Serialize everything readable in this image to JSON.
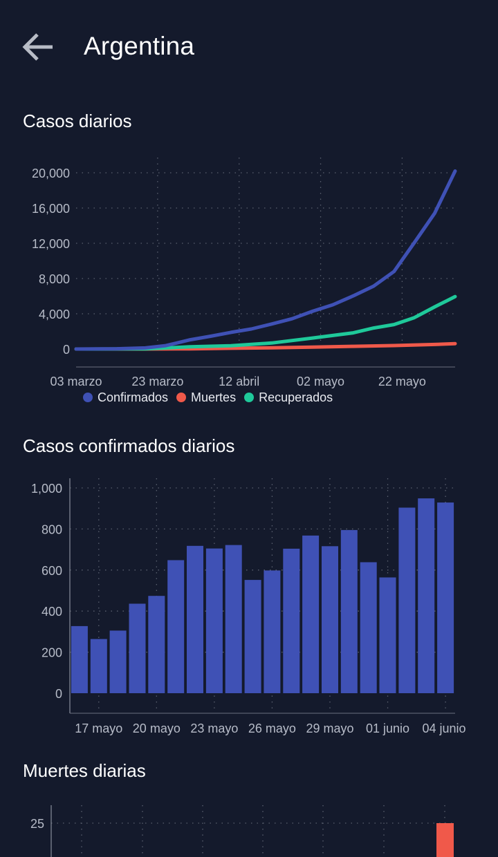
{
  "header": {
    "title": "Argentina"
  },
  "sections": {
    "cumulative": "Casos diarios",
    "confirmed": "Casos confirmados diarios",
    "deaths": "Muertes diarias"
  },
  "colors": {
    "background": "#141a2c",
    "confirmed": "#3f51b5",
    "deaths": "#f0594a",
    "recovered": "#1fc99a",
    "grid": "#5b6170",
    "tick": "#b7bcc8"
  },
  "chart_data": [
    {
      "type": "line",
      "title": "Casos diarios",
      "x_tick_labels": [
        "03 marzo",
        "23 marzo",
        "12 abril",
        "02 mayo",
        "22 mayo"
      ],
      "y_tick_labels": [
        "0",
        "4,000",
        "8,000",
        "12,000",
        "16,000",
        "20,000"
      ],
      "ylim": [
        0,
        20000
      ],
      "xlim": [
        "2020-03-03",
        "2020-06-04"
      ],
      "grid": true,
      "legend": "bottom",
      "series": [
        {
          "name": "Confirmados",
          "color": "#3f51b5",
          "points": [
            [
              "2020-03-03",
              1
            ],
            [
              "2020-03-13",
              31
            ],
            [
              "2020-03-20",
              128
            ],
            [
              "2020-03-25",
              387
            ],
            [
              "2020-03-31",
              1054
            ],
            [
              "2020-04-05",
              1451
            ],
            [
              "2020-04-10",
              1894
            ],
            [
              "2020-04-15",
              2277
            ],
            [
              "2020-04-20",
              2839
            ],
            [
              "2020-04-25",
              3435
            ],
            [
              "2020-04-30",
              4285
            ],
            [
              "2020-05-05",
              5020
            ],
            [
              "2020-05-10",
              6034
            ],
            [
              "2020-05-15",
              7134
            ],
            [
              "2020-05-20",
              8796
            ],
            [
              "2020-05-25",
              12076
            ],
            [
              "2020-05-30",
              15419
            ],
            [
              "2020-06-04",
              20197
            ]
          ]
        },
        {
          "name": "Muertes",
          "color": "#f0594a",
          "points": [
            [
              "2020-03-03",
              0
            ],
            [
              "2020-03-20",
              3
            ],
            [
              "2020-03-31",
              27
            ],
            [
              "2020-04-10",
              83
            ],
            [
              "2020-04-20",
              136
            ],
            [
              "2020-04-30",
              214
            ],
            [
              "2020-05-10",
              305
            ],
            [
              "2020-05-20",
              393
            ],
            [
              "2020-05-30",
              520
            ],
            [
              "2020-06-04",
              608
            ]
          ]
        },
        {
          "name": "Recuperados",
          "color": "#1fc99a",
          "points": [
            [
              "2020-03-03",
              0
            ],
            [
              "2020-03-20",
              27
            ],
            [
              "2020-03-31",
              248
            ],
            [
              "2020-04-10",
              365
            ],
            [
              "2020-04-20",
              681
            ],
            [
              "2020-04-30",
              1245
            ],
            [
              "2020-05-10",
              1837
            ],
            [
              "2020-05-15",
              2385
            ],
            [
              "2020-05-20",
              2777
            ],
            [
              "2020-05-25",
              3563
            ],
            [
              "2020-05-30",
              4788
            ],
            [
              "2020-06-02",
              5483
            ],
            [
              "2020-06-04",
              5951
            ]
          ]
        }
      ]
    },
    {
      "type": "bar",
      "title": "Casos confirmados diarios",
      "color": "#3f51b5",
      "categories": [
        "2020-05-15",
        "2020-05-16",
        "2020-05-17",
        "2020-05-18",
        "2020-05-19",
        "2020-05-20",
        "2020-05-21",
        "2020-05-22",
        "2020-05-23",
        "2020-05-24",
        "2020-05-25",
        "2020-05-26",
        "2020-05-27",
        "2020-05-28",
        "2020-05-29",
        "2020-05-30",
        "2020-05-31",
        "2020-06-01",
        "2020-06-02",
        "2020-06-03"
      ],
      "values": [
        327,
        264,
        305,
        436,
        474,
        648,
        718,
        705,
        722,
        552,
        598,
        704,
        768,
        716,
        795,
        638,
        564,
        904,
        949,
        929
      ],
      "x_tick_labels": [
        "17 mayo",
        "20 mayo",
        "23 mayo",
        "26 mayo",
        "29 mayo",
        "01 junio",
        "04 junio"
      ],
      "y_tick_labels": [
        "0",
        "200",
        "400",
        "600",
        "800",
        "1,000"
      ],
      "ylim": [
        0,
        1000
      ],
      "grid": true
    },
    {
      "type": "bar",
      "title": "Muertes diarias",
      "color": "#f0594a",
      "y_tick_labels": [
        "25"
      ],
      "values": [
        25
      ],
      "ylim": [
        0,
        25
      ],
      "grid": true
    }
  ]
}
